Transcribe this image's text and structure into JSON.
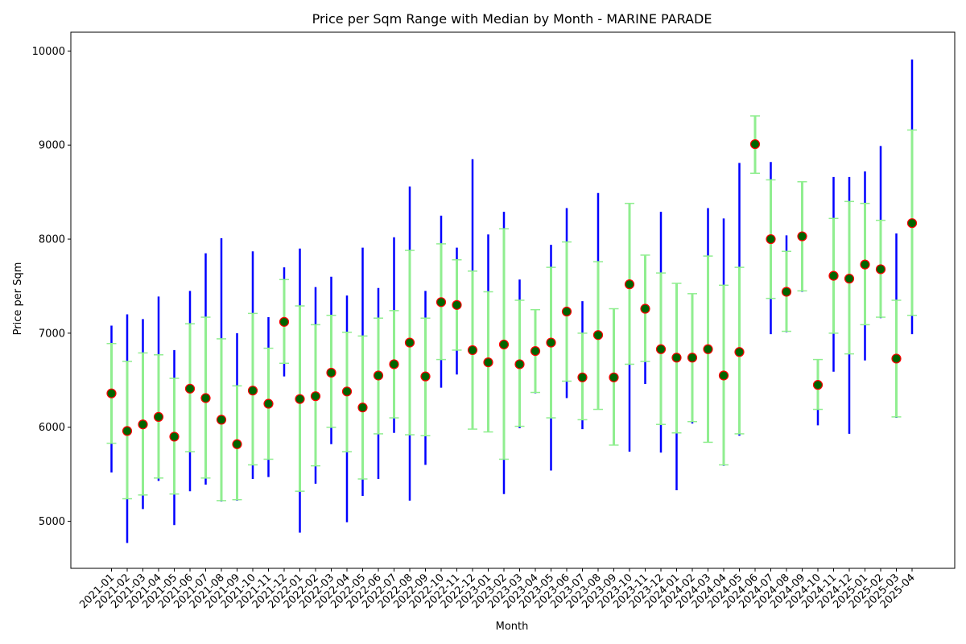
{
  "chart_data": {
    "type": "errorbar",
    "title": "Price per Sqm Range with Median by Month - MARINE PARADE",
    "xlabel": "Month",
    "ylabel": "Price per Sqm",
    "ylim": [
      4500,
      10200
    ],
    "yticks": [
      5000,
      6000,
      7000,
      8000,
      9000,
      10000
    ],
    "grid": false,
    "colors": {
      "range_line": "#0000ff",
      "iqr_bar": "#90ee90",
      "median_face": "#006400",
      "median_edge": "#ff0000"
    },
    "categories": [
      "2021-01",
      "2021-02",
      "2021-03",
      "2021-04",
      "2021-05",
      "2021-06",
      "2021-07",
      "2021-08",
      "2021-09",
      "2021-10",
      "2021-11",
      "2021-12",
      "2022-01",
      "2022-02",
      "2022-03",
      "2022-04",
      "2022-05",
      "2022-06",
      "2022-07",
      "2022-08",
      "2022-09",
      "2022-10",
      "2022-11",
      "2022-12",
      "2023-01",
      "2023-02",
      "2023-03",
      "2023-04",
      "2023-05",
      "2023-06",
      "2023-07",
      "2023-08",
      "2023-09",
      "2023-10",
      "2023-11",
      "2023-12",
      "2024-01",
      "2024-02",
      "2024-03",
      "2024-04",
      "2024-05",
      "2024-06",
      "2024-07",
      "2024-08",
      "2024-09",
      "2024-10",
      "2024-11",
      "2024-12",
      "2025-01",
      "2025-02",
      "2025-03",
      "2025-04"
    ],
    "series": [
      {
        "name": "min",
        "values": [
          5520,
          4770,
          5130,
          5430,
          4960,
          5320,
          5390,
          5210,
          5220,
          5450,
          5470,
          6540,
          4880,
          5400,
          5820,
          4990,
          5270,
          5450,
          5940,
          5220,
          5600,
          6420,
          6560,
          5980,
          5950,
          5290,
          5990,
          6360,
          5540,
          6310,
          5980,
          6190,
          5810,
          5740,
          6460,
          5730,
          5330,
          6040,
          5850,
          5590,
          5910,
          8700,
          6990,
          7010,
          7440,
          6020,
          6590,
          5930,
          6710,
          7160,
          6100,
          6990
        ]
      },
      {
        "name": "max",
        "values": [
          7080,
          7200,
          7150,
          7390,
          6820,
          7450,
          7850,
          8010,
          7000,
          7870,
          7170,
          7700,
          7900,
          7490,
          7600,
          7400,
          7910,
          7480,
          8020,
          8560,
          7450,
          8250,
          7910,
          8850,
          8050,
          8290,
          7570,
          7250,
          7940,
          8330,
          7340,
          8490,
          7260,
          8380,
          7830,
          8290,
          7530,
          7420,
          8330,
          8220,
          8810,
          9310,
          8820,
          8040,
          8610,
          6720,
          8660,
          8660,
          8720,
          8990,
          8060,
          9910
        ]
      },
      {
        "name": "q1",
        "values": [
          5830,
          5240,
          5280,
          5460,
          5290,
          5740,
          5460,
          5220,
          5230,
          5600,
          5660,
          6680,
          5320,
          5590,
          6000,
          5740,
          5450,
          5930,
          6100,
          5920,
          5910,
          6720,
          6820,
          5980,
          5950,
          5660,
          6010,
          6370,
          6100,
          6490,
          6080,
          6190,
          5810,
          6670,
          6700,
          6030,
          5940,
          6060,
          5840,
          5600,
          5930,
          8700,
          7370,
          7020,
          7450,
          6190,
          7000,
          6780,
          7090,
          7170,
          6110,
          7190
        ]
      },
      {
        "name": "q3",
        "values": [
          6890,
          6700,
          6790,
          6770,
          6520,
          7100,
          7170,
          6940,
          6440,
          7210,
          6840,
          7570,
          7290,
          7090,
          7190,
          7010,
          6970,
          7160,
          7240,
          7880,
          7160,
          7950,
          7780,
          7660,
          7440,
          8110,
          7350,
          7250,
          7700,
          7970,
          7000,
          7760,
          7260,
          8380,
          7830,
          7640,
          7530,
          7420,
          7820,
          7510,
          7700,
          9310,
          8630,
          7870,
          8610,
          6720,
          8220,
          8400,
          8380,
          8200,
          7350,
          9160
        ]
      },
      {
        "name": "median",
        "values": [
          6360,
          5960,
          6030,
          6110,
          5900,
          6410,
          6310,
          6080,
          5820,
          6390,
          6250,
          7120,
          6300,
          6330,
          6580,
          6380,
          6210,
          6550,
          6670,
          6900,
          6540,
          7330,
          7300,
          6820,
          6690,
          6880,
          6670,
          6810,
          6900,
          7230,
          6530,
          6980,
          6530,
          7520,
          7260,
          6830,
          6740,
          6740,
          6830,
          6550,
          6800,
          9010,
          8000,
          7440,
          8030,
          6450,
          7610,
          7580,
          7730,
          7680,
          6730,
          8170
        ]
      }
    ]
  }
}
